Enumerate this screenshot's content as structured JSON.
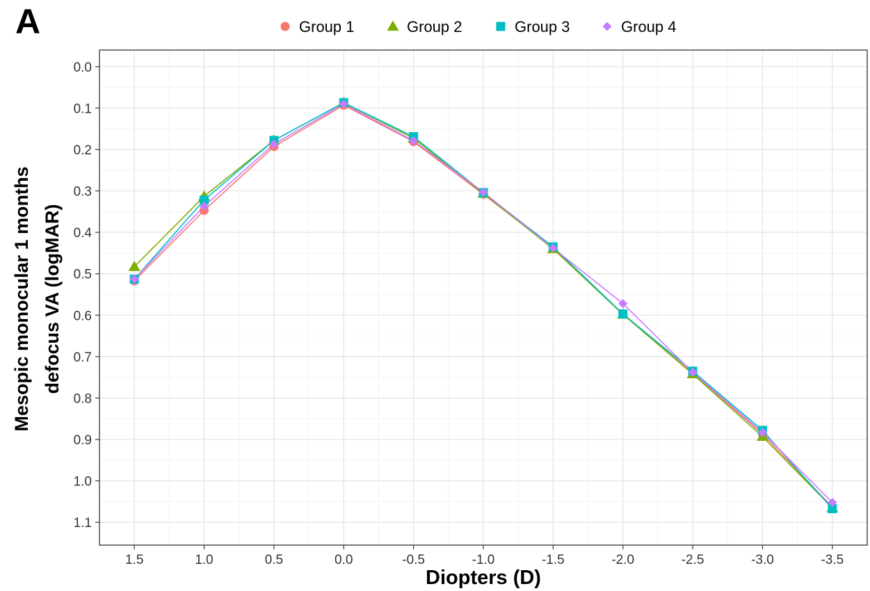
{
  "panel_label": "A",
  "chart_data": {
    "type": "line",
    "xlabel": "Diopters (D)",
    "ylabel_lines": [
      "Mesopic monocular 1 months",
      "defocus VA (logMAR)"
    ],
    "x": [
      1.5,
      1.0,
      0.5,
      0.0,
      -0.5,
      -1.0,
      -1.5,
      -2.0,
      -2.5,
      -3.0,
      -3.5
    ],
    "x_tick_labels": [
      "1.5",
      "1.0",
      "0.5",
      "0.0",
      "-0.5",
      "-1.0",
      "-1.5",
      "-2.0",
      "-2.5",
      "-3.0",
      "-3.5"
    ],
    "x_reversed": true,
    "y_ticks": [
      0.0,
      0.1,
      0.2,
      0.3,
      0.4,
      0.5,
      0.6,
      0.7,
      0.8,
      0.9,
      1.0,
      1.1
    ],
    "y_tick_labels": [
      "0.0",
      "0.1",
      "0.2",
      "0.3",
      "0.4",
      "0.5",
      "0.6",
      "0.7",
      "0.8",
      "0.9",
      "1.0",
      "1.1"
    ],
    "ylim": [
      -0.04,
      1.155
    ],
    "y_reversed": true,
    "grid": true,
    "legend_position": "top",
    "series": [
      {
        "name": "Group 1",
        "color": "#F8766D",
        "marker": "circle",
        "values": [
          0.517,
          0.347,
          0.193,
          0.093,
          0.181,
          0.308,
          0.438,
          0.597,
          0.74,
          0.887,
          1.063
        ]
      },
      {
        "name": "Group 2",
        "color": "#7CAE00",
        "marker": "triangle",
        "values": [
          0.483,
          0.313,
          0.178,
          0.087,
          0.173,
          0.306,
          0.44,
          0.598,
          0.742,
          0.893,
          1.065
        ]
      },
      {
        "name": "Group 3",
        "color": "#00BFC4",
        "marker": "square",
        "values": [
          0.513,
          0.322,
          0.178,
          0.087,
          0.169,
          0.304,
          0.435,
          0.597,
          0.735,
          0.878,
          1.067
        ]
      },
      {
        "name": "Group 4",
        "color": "#C77CFF",
        "marker": "diamond",
        "values": [
          0.513,
          0.337,
          0.187,
          0.09,
          0.179,
          0.303,
          0.438,
          0.572,
          0.738,
          0.883,
          1.052
        ]
      }
    ]
  }
}
